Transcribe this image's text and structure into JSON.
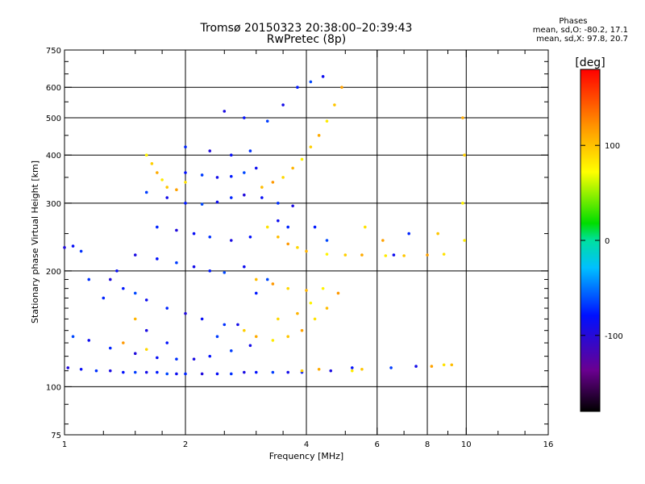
{
  "header": {
    "title": "Tromsø 20150323 20:38:00–20:39:43",
    "subtitle": "RwPretec (8p)"
  },
  "phase_summary": {
    "heading": "Phases",
    "line_o": "mean, sd,O: -80.2, 17.1",
    "line_x": "mean, sd,X:  97.8, 20.7"
  },
  "colorbar": {
    "unit_label": "[deg]",
    "ticks": [
      "100",
      "0",
      "-100"
    ],
    "tick_values": [
      100,
      0,
      -100
    ],
    "range": [
      -180,
      180
    ]
  },
  "chart_data": {
    "type": "scatter",
    "xlabel": "Frequency [MHz]",
    "ylabel": "Stationary phase Virtual Height [km]",
    "x_scale": "log",
    "y_scale": "log",
    "xlim": [
      1,
      16
    ],
    "ylim": [
      75,
      750
    ],
    "x_ticks": [
      1,
      2,
      4,
      6,
      8,
      10,
      16
    ],
    "x_tick_labels": [
      "1",
      "2",
      "4",
      "6",
      "8",
      "10",
      "16"
    ],
    "x_minor_ticks": [
      1.25,
      1.5,
      1.75,
      2.5,
      3,
      3.5,
      5,
      7,
      9,
      12,
      14
    ],
    "y_ticks": [
      75,
      100,
      200,
      300,
      400,
      500,
      600,
      750
    ],
    "y_tick_labels": [
      "75",
      "100",
      "200",
      "300",
      "400",
      "500",
      "600",
      "750"
    ],
    "y_minor_ticks": [
      80,
      90,
      110,
      120,
      130,
      140,
      150,
      160,
      170,
      180,
      190,
      250,
      350,
      450,
      550,
      650,
      700
    ],
    "grid_x": [
      2,
      4,
      6,
      8,
      10
    ],
    "grid_y": [
      100,
      200,
      300,
      400,
      500,
      600
    ],
    "grid": true,
    "color_encoding": "phase in degrees",
    "series": [
      {
        "name": "O-mode",
        "phase_mean": -80.2,
        "phase_sd": 17.1,
        "points": [
          {
            "x": 1.02,
            "y": 112
          },
          {
            "x": 1.1,
            "y": 111
          },
          {
            "x": 1.2,
            "y": 110
          },
          {
            "x": 1.3,
            "y": 110
          },
          {
            "x": 1.4,
            "y": 109
          },
          {
            "x": 1.5,
            "y": 109
          },
          {
            "x": 1.6,
            "y": 109
          },
          {
            "x": 1.7,
            "y": 109
          },
          {
            "x": 1.8,
            "y": 108
          },
          {
            "x": 1.9,
            "y": 108
          },
          {
            "x": 2.0,
            "y": 108
          },
          {
            "x": 2.2,
            "y": 108
          },
          {
            "x": 2.4,
            "y": 108
          },
          {
            "x": 2.6,
            "y": 108
          },
          {
            "x": 2.8,
            "y": 109
          },
          {
            "x": 3.0,
            "y": 109
          },
          {
            "x": 3.3,
            "y": 109
          },
          {
            "x": 3.6,
            "y": 109
          },
          {
            "x": 3.9,
            "y": 109
          },
          {
            "x": 1.05,
            "y": 135
          },
          {
            "x": 1.15,
            "y": 132
          },
          {
            "x": 1.3,
            "y": 126
          },
          {
            "x": 1.5,
            "y": 122
          },
          {
            "x": 1.7,
            "y": 119
          },
          {
            "x": 1.9,
            "y": 118
          },
          {
            "x": 2.1,
            "y": 118
          },
          {
            "x": 2.3,
            "y": 120
          },
          {
            "x": 2.6,
            "y": 124
          },
          {
            "x": 2.9,
            "y": 128
          },
          {
            "x": 1.4,
            "y": 180
          },
          {
            "x": 1.5,
            "y": 175
          },
          {
            "x": 1.6,
            "y": 168
          },
          {
            "x": 1.8,
            "y": 160
          },
          {
            "x": 2.0,
            "y": 155
          },
          {
            "x": 2.2,
            "y": 150
          },
          {
            "x": 2.5,
            "y": 145
          },
          {
            "x": 1.5,
            "y": 220
          },
          {
            "x": 1.7,
            "y": 215
          },
          {
            "x": 1.9,
            "y": 210
          },
          {
            "x": 2.1,
            "y": 205
          },
          {
            "x": 2.3,
            "y": 200
          },
          {
            "x": 2.5,
            "y": 198
          },
          {
            "x": 2.8,
            "y": 205
          },
          {
            "x": 1.7,
            "y": 260
          },
          {
            "x": 1.9,
            "y": 255
          },
          {
            "x": 2.1,
            "y": 250
          },
          {
            "x": 2.3,
            "y": 245
          },
          {
            "x": 2.6,
            "y": 240
          },
          {
            "x": 2.9,
            "y": 245
          },
          {
            "x": 1.6,
            "y": 320
          },
          {
            "x": 1.8,
            "y": 310
          },
          {
            "x": 2.0,
            "y": 300
          },
          {
            "x": 2.2,
            "y": 298
          },
          {
            "x": 2.4,
            "y": 302
          },
          {
            "x": 2.6,
            "y": 310
          },
          {
            "x": 2.8,
            "y": 315
          },
          {
            "x": 3.1,
            "y": 310
          },
          {
            "x": 3.4,
            "y": 300
          },
          {
            "x": 3.7,
            "y": 295
          },
          {
            "x": 2.0,
            "y": 360
          },
          {
            "x": 2.2,
            "y": 355
          },
          {
            "x": 2.4,
            "y": 350
          },
          {
            "x": 2.6,
            "y": 352
          },
          {
            "x": 2.8,
            "y": 360
          },
          {
            "x": 3.0,
            "y": 370
          },
          {
            "x": 2.0,
            "y": 420
          },
          {
            "x": 2.3,
            "y": 410
          },
          {
            "x": 2.6,
            "y": 400
          },
          {
            "x": 2.9,
            "y": 410
          },
          {
            "x": 2.5,
            "y": 520
          },
          {
            "x": 2.8,
            "y": 500
          },
          {
            "x": 3.2,
            "y": 490
          },
          {
            "x": 3.5,
            "y": 540
          },
          {
            "x": 3.8,
            "y": 600
          },
          {
            "x": 4.1,
            "y": 620
          },
          {
            "x": 4.4,
            "y": 640
          },
          {
            "x": 1.25,
            "y": 170
          },
          {
            "x": 1.3,
            "y": 190
          },
          {
            "x": 1.35,
            "y": 200
          },
          {
            "x": 1.15,
            "y": 190
          },
          {
            "x": 1.6,
            "y": 140
          },
          {
            "x": 1.8,
            "y": 130
          },
          {
            "x": 2.4,
            "y": 135
          },
          {
            "x": 2.7,
            "y": 145
          },
          {
            "x": 3.0,
            "y": 175
          },
          {
            "x": 3.2,
            "y": 190
          },
          {
            "x": 3.4,
            "y": 270
          },
          {
            "x": 3.6,
            "y": 260
          },
          {
            "x": 1.0,
            "y": 230
          },
          {
            "x": 1.05,
            "y": 232
          },
          {
            "x": 1.1,
            "y": 225
          },
          {
            "x": 4.6,
            "y": 110
          },
          {
            "x": 5.2,
            "y": 112
          },
          {
            "x": 6.5,
            "y": 112
          },
          {
            "x": 7.5,
            "y": 113
          },
          {
            "x": 4.2,
            "y": 260
          },
          {
            "x": 4.5,
            "y": 240
          },
          {
            "x": 6.6,
            "y": 220
          },
          {
            "x": 7.2,
            "y": 250
          }
        ]
      },
      {
        "name": "X-mode",
        "phase_mean": 97.8,
        "phase_sd": 20.7,
        "points": [
          {
            "x": 1.6,
            "y": 400
          },
          {
            "x": 1.65,
            "y": 380
          },
          {
            "x": 1.7,
            "y": 360
          },
          {
            "x": 1.75,
            "y": 345
          },
          {
            "x": 1.8,
            "y": 330
          },
          {
            "x": 1.9,
            "y": 325
          },
          {
            "x": 2.0,
            "y": 340
          },
          {
            "x": 3.1,
            "y": 330
          },
          {
            "x": 3.3,
            "y": 340
          },
          {
            "x": 3.5,
            "y": 350
          },
          {
            "x": 3.7,
            "y": 370
          },
          {
            "x": 3.9,
            "y": 390
          },
          {
            "x": 4.1,
            "y": 420
          },
          {
            "x": 4.3,
            "y": 450
          },
          {
            "x": 4.5,
            "y": 490
          },
          {
            "x": 4.7,
            "y": 540
          },
          {
            "x": 4.9,
            "y": 600
          },
          {
            "x": 3.2,
            "y": 260
          },
          {
            "x": 3.4,
            "y": 245
          },
          {
            "x": 3.6,
            "y": 235
          },
          {
            "x": 3.8,
            "y": 230
          },
          {
            "x": 4.0,
            "y": 225
          },
          {
            "x": 4.5,
            "y": 221
          },
          {
            "x": 5.0,
            "y": 220
          },
          {
            "x": 5.5,
            "y": 220
          },
          {
            "x": 6.3,
            "y": 219
          },
          {
            "x": 7.0,
            "y": 219
          },
          {
            "x": 8.0,
            "y": 220
          },
          {
            "x": 8.8,
            "y": 221
          },
          {
            "x": 3.0,
            "y": 190
          },
          {
            "x": 3.3,
            "y": 185
          },
          {
            "x": 3.6,
            "y": 180
          },
          {
            "x": 4.0,
            "y": 178
          },
          {
            "x": 4.4,
            "y": 180
          },
          {
            "x": 2.8,
            "y": 140
          },
          {
            "x": 3.0,
            "y": 135
          },
          {
            "x": 3.3,
            "y": 132
          },
          {
            "x": 3.6,
            "y": 135
          },
          {
            "x": 3.9,
            "y": 140
          },
          {
            "x": 4.2,
            "y": 150
          },
          {
            "x": 4.5,
            "y": 160
          },
          {
            "x": 4.8,
            "y": 175
          },
          {
            "x": 3.4,
            "y": 150
          },
          {
            "x": 3.8,
            "y": 155
          },
          {
            "x": 4.1,
            "y": 165
          },
          {
            "x": 3.9,
            "y": 110
          },
          {
            "x": 4.3,
            "y": 111
          },
          {
            "x": 5.2,
            "y": 110
          },
          {
            "x": 5.5,
            "y": 111
          },
          {
            "x": 8.2,
            "y": 113
          },
          {
            "x": 8.8,
            "y": 114
          },
          {
            "x": 9.2,
            "y": 114
          },
          {
            "x": 1.4,
            "y": 130
          },
          {
            "x": 1.6,
            "y": 125
          },
          {
            "x": 1.5,
            "y": 150
          },
          {
            "x": 9.8,
            "y": 300
          },
          {
            "x": 9.9,
            "y": 400
          },
          {
            "x": 9.8,
            "y": 500
          },
          {
            "x": 9.9,
            "y": 240
          },
          {
            "x": 8.5,
            "y": 250
          },
          {
            "x": 6.2,
            "y": 240
          },
          {
            "x": 5.6,
            "y": 260
          }
        ]
      }
    ]
  }
}
